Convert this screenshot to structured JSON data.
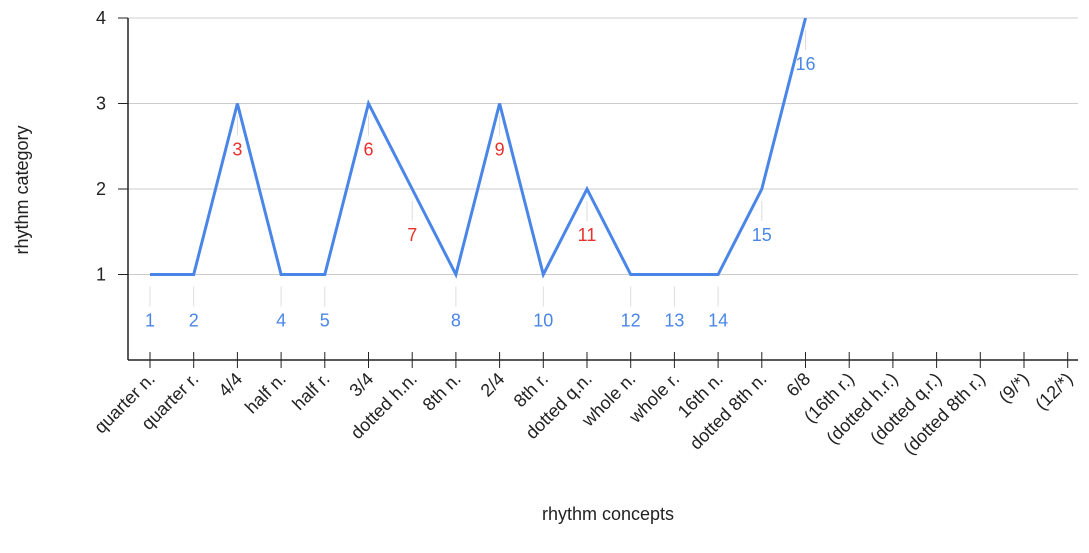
{
  "chart_data": {
    "type": "line",
    "x_label": "rhythm concepts",
    "y_label": "rhythm category",
    "categories": [
      "quarter n.",
      "quarter r.",
      "4/4",
      "half n.",
      "half r.",
      "3/4",
      "dotted h.n.",
      "8th n.",
      "2/4",
      "8th r.",
      "dotted q.n.",
      "whole n.",
      "whole r.",
      "16th n.",
      "dotted 8th n.",
      "6/8",
      "(16th r.)",
      "(dotted h.r.)",
      "(dotted q.r.)",
      "(dotted 8th r.)",
      "(9/*)",
      "(12/*)"
    ],
    "series": [
      {
        "name": "rhythm category",
        "color": "#4a86e8",
        "values": [
          1,
          1,
          3,
          1,
          1,
          3,
          2,
          1,
          3,
          1,
          2,
          1,
          1,
          1,
          2,
          4,
          null,
          null,
          null,
          null,
          null,
          null
        ],
        "point_labels": [
          "1",
          "2",
          "3",
          "4",
          "5",
          "6",
          "7",
          "8",
          "9",
          "10",
          "11",
          "12",
          "13",
          "14",
          "15",
          "16",
          null,
          null,
          null,
          null,
          null,
          null
        ],
        "point_label_colors": [
          "#4a86e8",
          "#4a86e8",
          "#e8312d",
          "#4a86e8",
          "#4a86e8",
          "#e8312d",
          "#e8312d",
          "#4a86e8",
          "#e8312d",
          "#4a86e8",
          "#e8312d",
          "#4a86e8",
          "#4a86e8",
          "#4a86e8",
          "#4a86e8",
          "#4a86e8",
          null,
          null,
          null,
          null,
          null,
          null
        ]
      }
    ],
    "ylim": [
      0,
      4
    ],
    "yticks": [
      1,
      2,
      3,
      4
    ],
    "grid": true
  }
}
